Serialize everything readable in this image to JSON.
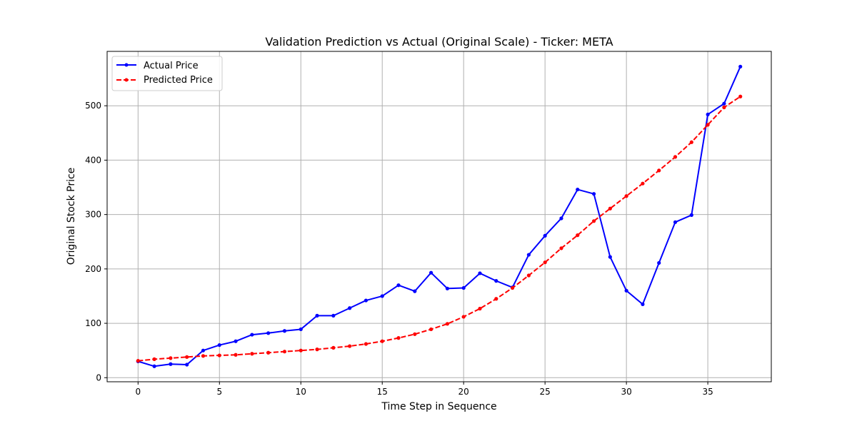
{
  "chart_data": {
    "type": "line",
    "title": "Validation Prediction vs Actual (Original Scale) - Ticker: META",
    "xlabel": "Time Step in Sequence",
    "ylabel": "Original Stock Price",
    "xlim": [
      -1.9,
      38.9
    ],
    "ylim": [
      -7.5,
      600
    ],
    "xticks": [
      0,
      5,
      10,
      15,
      20,
      25,
      30,
      35
    ],
    "yticks": [
      0,
      100,
      200,
      300,
      400,
      500
    ],
    "grid": true,
    "legend_position": "top-left",
    "x": [
      0,
      1,
      2,
      3,
      4,
      5,
      6,
      7,
      8,
      9,
      10,
      11,
      12,
      13,
      14,
      15,
      16,
      17,
      18,
      19,
      20,
      21,
      22,
      23,
      24,
      25,
      26,
      27,
      28,
      29,
      30,
      31,
      32,
      33,
      34,
      35,
      36,
      37
    ],
    "series": [
      {
        "name": "Actual Price",
        "color": "#0000ff",
        "line_style": "solid",
        "marker": "circle",
        "values": [
          30,
          21,
          25,
          24,
          50,
          60,
          67,
          79,
          82,
          86,
          89,
          114,
          114,
          128,
          142,
          150,
          170,
          159,
          193,
          164,
          165,
          192,
          178,
          166,
          226,
          261,
          293,
          346,
          338,
          222,
          160,
          135,
          211,
          286,
          299,
          484,
          504,
          572
        ]
      },
      {
        "name": "Predicted Price",
        "color": "#ff0000",
        "line_style": "dashed",
        "marker": "circle",
        "values": [
          31,
          34,
          36,
          38,
          40,
          41,
          42,
          44,
          46,
          48,
          50,
          52,
          55,
          58,
          62,
          67,
          73,
          80,
          89,
          99,
          112,
          127,
          145,
          165,
          188,
          212,
          238,
          262,
          288,
          311,
          334,
          357,
          381,
          406,
          433,
          465,
          497,
          517
        ]
      }
    ]
  }
}
